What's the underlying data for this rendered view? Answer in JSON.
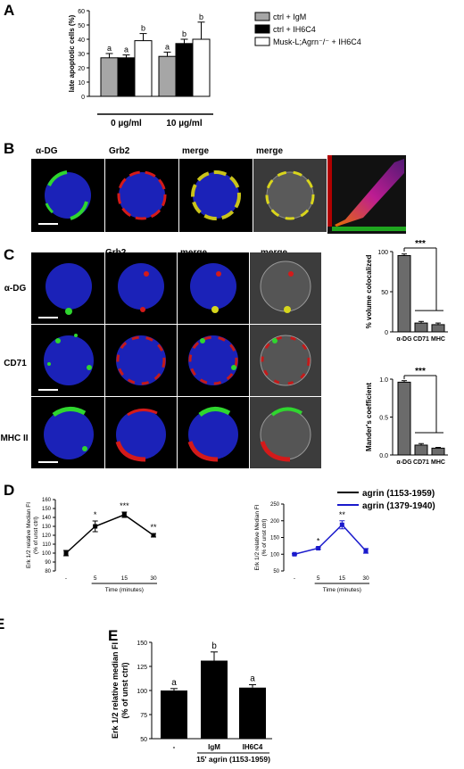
{
  "panel_letters": {
    "a": "A",
    "b": "B",
    "c": "C",
    "d": "D",
    "e_cut": "E",
    "e": "E"
  },
  "panelB": {
    "col_labels": [
      "α-DG",
      "Grb2",
      "merge",
      "merge"
    ]
  },
  "panelC": {
    "col_labels": [
      "Grb2",
      "merge",
      "merge"
    ],
    "row_labels": [
      "α-DG",
      "CD71",
      "MHC II"
    ]
  },
  "colors": {
    "gray_bar": "#a6a6a6",
    "dark_bar": "#555555",
    "black": "#000000",
    "white": "#ffffff",
    "blue_series": "#1a1acc"
  },
  "chart_data": [
    {
      "type": "bar",
      "id": "A",
      "ylabel": "late apoptotic cells (%)",
      "ylim": [
        0,
        60
      ],
      "yticks": [
        0,
        10,
        20,
        30,
        40,
        50,
        60
      ],
      "groups": [
        "0 µg/ml",
        "10 µg/ml"
      ],
      "legend": [
        "ctrl + IgM",
        "ctrl + IH6C4",
        "Musk-L;Agrn⁻/⁻ + IH6C4"
      ],
      "series": [
        {
          "name": "ctrl + IgM",
          "values": [
            27,
            28
          ],
          "errors": [
            3,
            3
          ],
          "letters": [
            "a",
            "a"
          ],
          "color": "#a6a6a6"
        },
        {
          "name": "ctrl + IH6C4",
          "values": [
            27,
            37
          ],
          "errors": [
            2,
            3
          ],
          "letters": [
            "a",
            "b"
          ],
          "color": "#000000"
        },
        {
          "name": "Musk-L;Agrn⁻/⁻ + IH6C4",
          "values": [
            39,
            40
          ],
          "errors": [
            5,
            12
          ],
          "letters": [
            "b",
            "b"
          ],
          "color": "#ffffff"
        }
      ]
    },
    {
      "type": "bar",
      "id": "C-top",
      "ylabel": "% volume colocalized",
      "ylim": [
        0,
        100
      ],
      "yticks": [
        0,
        50,
        100
      ],
      "categories": [
        "α-DG",
        "CD71",
        "MHC"
      ],
      "values": [
        95,
        11,
        9
      ],
      "errors": [
        2,
        2,
        2
      ],
      "significance": "***"
    },
    {
      "type": "bar",
      "id": "C-bottom",
      "ylabel": "Mander's coefficient",
      "ylim": [
        0,
        1
      ],
      "yticks": [
        0.0,
        0.5,
        1.0
      ],
      "ytick_labels": [
        "0.0",
        "0.5",
        "1.0"
      ],
      "categories": [
        "α-DG",
        "CD71",
        "MHC"
      ],
      "values": [
        0.96,
        0.13,
        0.09
      ],
      "errors": [
        0.02,
        0.02,
        0.01
      ],
      "significance": "***"
    },
    {
      "type": "line",
      "id": "D-left",
      "ylabel": "Erk 1/2 relative Median FI",
      "ylabel2": "(% of unst ctrl)",
      "xlabel": "Time (minutes)",
      "x": [
        "-",
        "5",
        "15",
        "30"
      ],
      "ylim": [
        80,
        160
      ],
      "yticks": [
        80,
        90,
        100,
        110,
        120,
        130,
        140,
        150,
        160
      ],
      "series": [
        {
          "name": "agrin (1153-1959)",
          "values": [
            100,
            130,
            143,
            120
          ],
          "errors": [
            3,
            6,
            3,
            2
          ],
          "stars": [
            "",
            "*",
            "***",
            "**"
          ],
          "color": "#000000"
        }
      ]
    },
    {
      "type": "line",
      "id": "D-right",
      "ylabel": "Erk 1/2 relative Median FI",
      "ylabel2": "(% of unst ctrl)",
      "xlabel": "Time (minutes)",
      "x": [
        "-",
        "5",
        "15",
        "30"
      ],
      "ylim": [
        50,
        250
      ],
      "yticks": [
        50,
        100,
        150,
        200,
        250
      ],
      "series": [
        {
          "name": "agrin (1379-1940)",
          "values": [
            100,
            118,
            188,
            110
          ],
          "errors": [
            2,
            3,
            12,
            7
          ],
          "stars": [
            "",
            "*",
            "**",
            ""
          ],
          "color": "#1a1acc"
        }
      ]
    },
    {
      "type": "bar",
      "id": "E",
      "ylabel": "Erk 1/2 relative median FI",
      "ylabel2": "(% of unst ctrl)",
      "categories": [
        "-",
        "IgM",
        "IH6C4"
      ],
      "values": [
        100,
        131,
        103
      ],
      "errors": [
        2,
        9,
        3
      ],
      "letters": [
        "a",
        "b",
        "a"
      ],
      "xgroup_label": "15' agrin (1153-1959)",
      "ylim": [
        50,
        150
      ],
      "yticks": [
        50,
        75,
        100,
        125,
        150
      ]
    }
  ]
}
